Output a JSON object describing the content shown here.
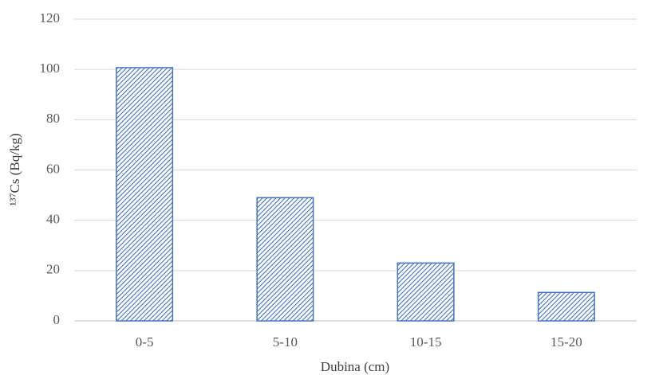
{
  "chart_data": {
    "type": "bar",
    "x_label": "Dubina (cm)",
    "y_label": "¹³⁷Cs (Bq/kg)",
    "categories": [
      "0-5",
      "5-10",
      "10-15",
      "15-20"
    ],
    "values": [
      100.7,
      49,
      23,
      11.3
    ],
    "color": "#4472c4",
    "ylim": [
      0,
      120
    ],
    "yticks": [
      0,
      20,
      40,
      60,
      80,
      100,
      120
    ],
    "grid": true
  }
}
